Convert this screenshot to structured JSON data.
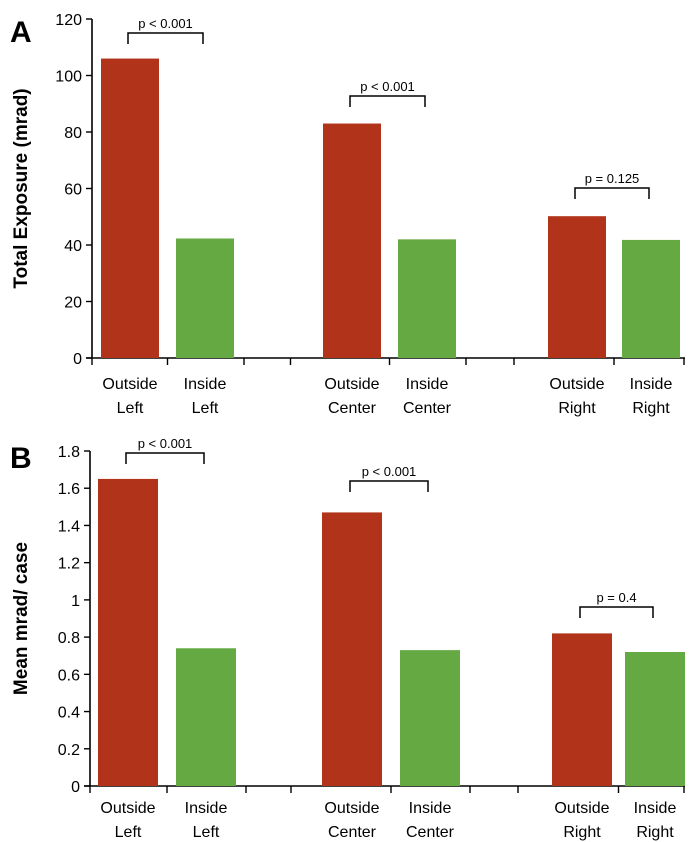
{
  "chart_data": [
    {
      "type": "bar",
      "panel_label": "A",
      "ylabel": "Total Exposure (mrad)",
      "ylim": [
        0,
        120
      ],
      "yticks": [
        "0",
        "20",
        "40",
        "60",
        "80",
        "100",
        "120"
      ],
      "groups": [
        {
          "outside_label": [
            "Outside",
            "Left"
          ],
          "inside_label": [
            "Inside",
            "Left"
          ],
          "outside": 106,
          "inside": 42.3,
          "p": "p < 0.001"
        },
        {
          "outside_label": [
            "Outside",
            "Center"
          ],
          "inside_label": [
            "Inside",
            "Center"
          ],
          "outside": 83,
          "inside": 42,
          "p": "p < 0.001"
        },
        {
          "outside_label": [
            "Outside",
            "Right"
          ],
          "inside_label": [
            "Inside",
            "Right"
          ],
          "outside": 50.2,
          "inside": 41.8,
          "p": "p = 0.125"
        }
      ],
      "colors": {
        "outside": "#b1341a",
        "inside": "#64a942"
      },
      "grid": false
    },
    {
      "type": "bar",
      "panel_label": "B",
      "ylabel": "Mean mrad/ case",
      "ylim": [
        0,
        1.8
      ],
      "yticks": [
        "0",
        "0.2",
        "0.4",
        "0.6",
        "0.8",
        "1",
        "1.2",
        "1.4",
        "1.6",
        "1.8"
      ],
      "groups": [
        {
          "outside_label": [
            "Outside",
            "Left"
          ],
          "inside_label": [
            "Inside",
            "Left"
          ],
          "outside": 1.65,
          "inside": 0.74,
          "p": "p < 0.001"
        },
        {
          "outside_label": [
            "Outside",
            "Center"
          ],
          "inside_label": [
            "Inside",
            "Center"
          ],
          "outside": 1.47,
          "inside": 0.73,
          "p": "p < 0.001"
        },
        {
          "outside_label": [
            "Outside",
            "Right"
          ],
          "inside_label": [
            "Inside",
            "Right"
          ],
          "outside": 0.82,
          "inside": 0.72,
          "p": "p = 0.4"
        }
      ],
      "colors": {
        "outside": "#b1341a",
        "inside": "#64a942"
      },
      "grid": false
    }
  ]
}
